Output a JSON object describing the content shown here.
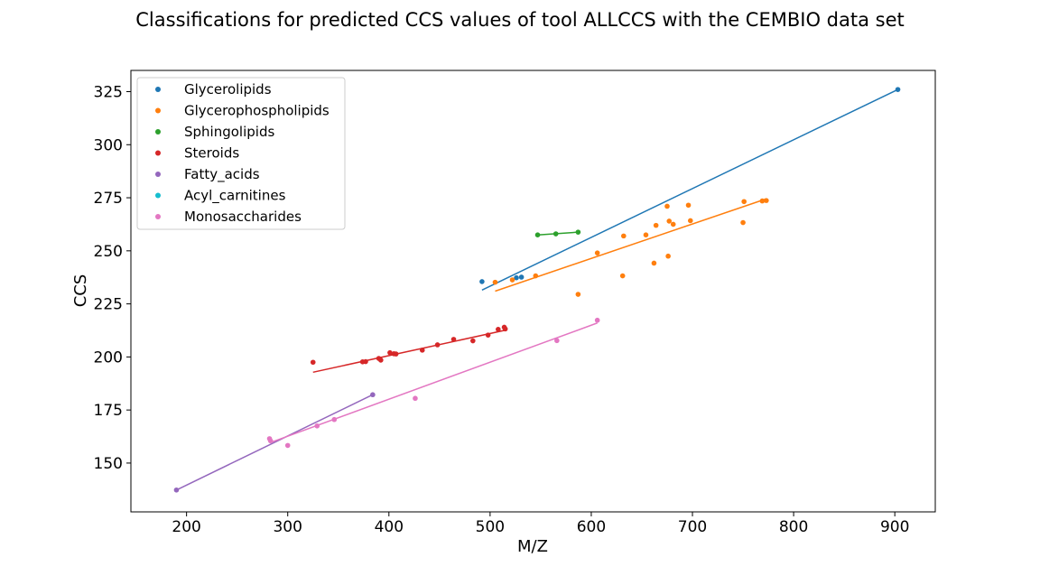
{
  "chart_data": {
    "type": "scatter",
    "title": "Classifications for predicted CCS values of tool ALLCCS with the CEMBIO data set",
    "xlabel": "M/Z",
    "ylabel": "CCS",
    "xlim": [
      145,
      940
    ],
    "ylim": [
      127,
      335
    ],
    "xticks": [
      200,
      300,
      400,
      500,
      600,
      700,
      800,
      900
    ],
    "yticks": [
      150,
      175,
      200,
      225,
      250,
      275,
      300,
      325
    ],
    "grid": false,
    "legend_position": "top-left",
    "series": [
      {
        "name": "Glycerolipids",
        "color": "#1f77b4",
        "points": [
          [
            492,
            235.5
          ],
          [
            526,
            237.3
          ],
          [
            531,
            237.6
          ],
          [
            903,
            326
          ]
        ],
        "fit": [
          [
            492,
            231.5
          ],
          [
            903,
            326
          ]
        ]
      },
      {
        "name": "Glycerophospholipids",
        "color": "#ff7f0e",
        "points": [
          [
            505,
            235.2
          ],
          [
            522,
            236.3
          ],
          [
            545,
            238.2
          ],
          [
            587,
            229.5
          ],
          [
            606,
            249
          ],
          [
            631,
            238.2
          ],
          [
            632,
            257
          ],
          [
            654,
            257.5
          ],
          [
            662,
            244.2
          ],
          [
            664,
            262
          ],
          [
            675,
            271
          ],
          [
            676,
            247.5
          ],
          [
            677,
            264
          ],
          [
            681,
            262.5
          ],
          [
            696,
            271.5
          ],
          [
            698,
            264.2
          ],
          [
            750,
            263.3
          ],
          [
            751,
            273.2
          ],
          [
            769,
            273.5
          ],
          [
            773,
            273.7
          ]
        ],
        "fit": [
          [
            505,
            231
          ],
          [
            773,
            274.5
          ]
        ]
      },
      {
        "name": "Sphingolipids",
        "color": "#2ca02c",
        "points": [
          [
            547,
            257.5
          ],
          [
            565,
            258
          ],
          [
            587,
            258.8
          ]
        ],
        "fit": [
          [
            547,
            257.5
          ],
          [
            587,
            258.8
          ]
        ]
      },
      {
        "name": "Steroids",
        "color": "#d62728",
        "points": [
          [
            325,
            197.5
          ],
          [
            374,
            197.7
          ],
          [
            377,
            197.8
          ],
          [
            390,
            199.3
          ],
          [
            392,
            198.5
          ],
          [
            401,
            202
          ],
          [
            405,
            201.5
          ],
          [
            407,
            201.4
          ],
          [
            433,
            203.2
          ],
          [
            448,
            205.7
          ],
          [
            464,
            208.3
          ],
          [
            483,
            207.6
          ],
          [
            498,
            210.3
          ],
          [
            508,
            213
          ],
          [
            514,
            214
          ],
          [
            515,
            213.2
          ]
        ],
        "fit": [
          [
            325,
            192.8
          ],
          [
            515,
            212.6
          ]
        ]
      },
      {
        "name": "Fatty_acids",
        "color": "#9467bd",
        "points": [
          [
            190,
            137.3
          ],
          [
            384,
            182.2
          ]
        ],
        "fit": [
          [
            190,
            137.3
          ],
          [
            384,
            182.2
          ]
        ]
      },
      {
        "name": "Acyl_carnitines",
        "color": "#17becf",
        "points": [],
        "fit": []
      },
      {
        "name": "Monosaccharides",
        "color": "#e377c2",
        "points": [
          [
            282,
            161.5
          ],
          [
            283,
            160.5
          ],
          [
            300,
            158.3
          ],
          [
            329,
            167.5
          ],
          [
            346,
            170.5
          ],
          [
            426,
            180.5
          ],
          [
            566,
            207.7
          ],
          [
            606,
            217.3
          ]
        ],
        "fit": [
          [
            282,
            159.5
          ],
          [
            606,
            216
          ]
        ]
      }
    ]
  }
}
